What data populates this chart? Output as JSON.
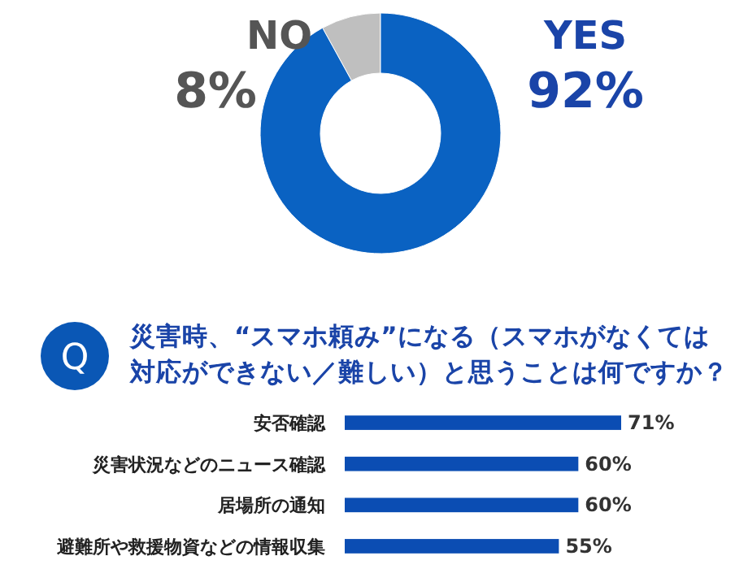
{
  "chart_data": [
    {
      "type": "donut",
      "categories": [
        "NO",
        "YES"
      ],
      "values": [
        8,
        92
      ],
      "colors": [
        "#bfbfbf",
        "#0a62c2"
      ],
      "value_labels": [
        "8%",
        "92%"
      ]
    },
    {
      "type": "bar",
      "orientation": "horizontal",
      "title": "災害時、“スマホ頼み”になる（スマホがなくては対応ができない／難しい）と思うことは何ですか？",
      "annotations": [
        "Q"
      ],
      "categories": [
        "安否確認",
        "災害状況などのニュース確認",
        "居場所の通知",
        "避難所や救援物資などの情報収集"
      ],
      "values": [
        71,
        60,
        60,
        55
      ],
      "color": "#0b4db3",
      "value_labels": [
        "71%",
        "60%",
        "60%",
        "55%"
      ],
      "tick_labels": "y"
    }
  ]
}
